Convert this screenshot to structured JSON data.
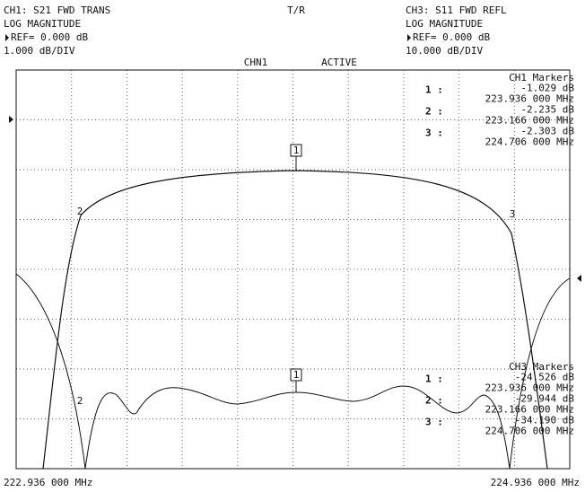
{
  "header": {
    "left": [
      "CH1:  S21 FWD TRANS",
      "LOG MAGNITUDE",
      "REF=  0.000 dB",
      "1.000 dB/DIV"
    ],
    "center": "T/R",
    "right": [
      "CH3:  S11 FWD REFL",
      "LOG MAGNITUDE",
      "REF=  0.000 dB",
      "10.000 dB/DIV"
    ],
    "status": [
      "CHN1",
      "ACTIVE"
    ]
  },
  "markers": {
    "ch1": {
      "title": "CH1 Markers",
      "rows": [
        {
          "label": "1 :",
          "value": "-1.029 dB",
          "freq": "223.936 000 MHz"
        },
        {
          "label": "2 :",
          "value": "-2.235 dB",
          "freq": "223.166 000 MHz"
        },
        {
          "label": "3 :",
          "value": "-2.303 dB",
          "freq": "224.706 000 MHz"
        }
      ]
    },
    "ch3": {
      "title": "CH3 Markers",
      "rows": [
        {
          "label": "1 :",
          "value": "-24.526 dB",
          "freq": "223.936 000 MHz"
        },
        {
          "label": "2 :",
          "value": "-29.944 dB",
          "freq": "223.166 000 MHz"
        },
        {
          "label": "3 :",
          "value": "-34.190 dB",
          "freq": "224.706 000 MHz"
        }
      ]
    }
  },
  "trace_markers": {
    "ch1_active": "1",
    "ch1_m2": "2",
    "ch1_m3": "3",
    "ch3_active": "1",
    "ch3_m2": "2"
  },
  "footer": {
    "start": "222.936 000 MHz",
    "stop": "224.936 000 MHz"
  }
}
